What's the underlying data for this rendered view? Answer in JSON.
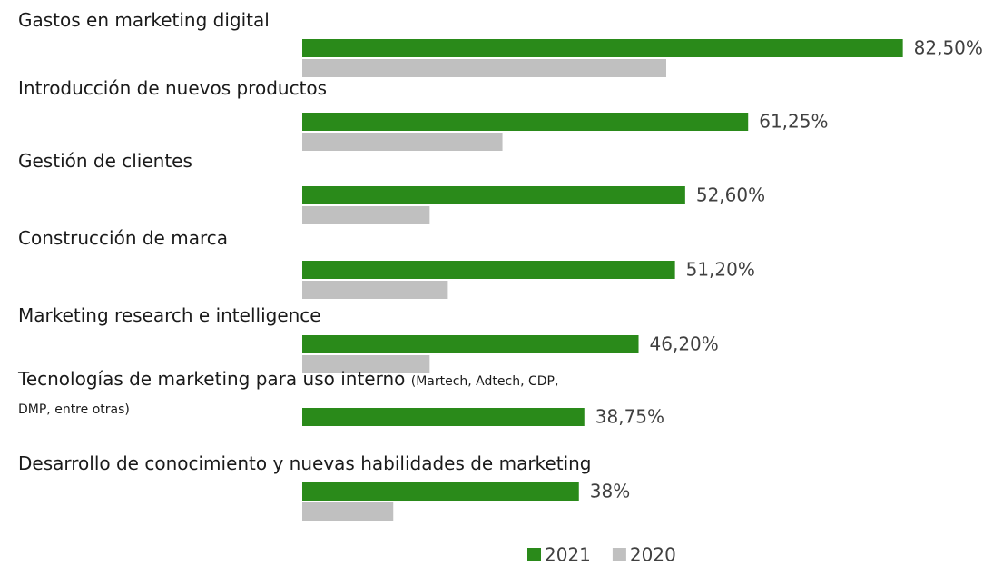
{
  "chart_data": {
    "type": "barh",
    "categories": [
      "Gastos en marketing digital",
      "Introducción de nuevos productos",
      "Gestión de clientes",
      "Construcción de marca",
      "Marketing research e intelligence",
      "Tecnologías de marketing para uso interno",
      "Desarrollo de conocimiento y nuevas habilidades de marketing"
    ],
    "category_notes": [
      null,
      null,
      null,
      null,
      null,
      "(Martech, Adtech, CDP, DMP, entre otras)",
      null
    ],
    "series": [
      {
        "name": "2021",
        "color": "#2a8a1a",
        "values": [
          82.5,
          61.25,
          52.6,
          51.2,
          46.2,
          38.75,
          38
        ],
        "value_labels": [
          "82,50%",
          "61,25%",
          "52,60%",
          "51,20%",
          "46,20%",
          "38,75%",
          "38%"
        ]
      },
      {
        "name": "2020",
        "color": "#c0c0c0",
        "values": [
          50,
          27.5,
          17.5,
          20,
          17.5,
          null,
          12.5
        ]
      }
    ],
    "xlim": [
      0,
      100
    ],
    "legend": "bottom"
  }
}
